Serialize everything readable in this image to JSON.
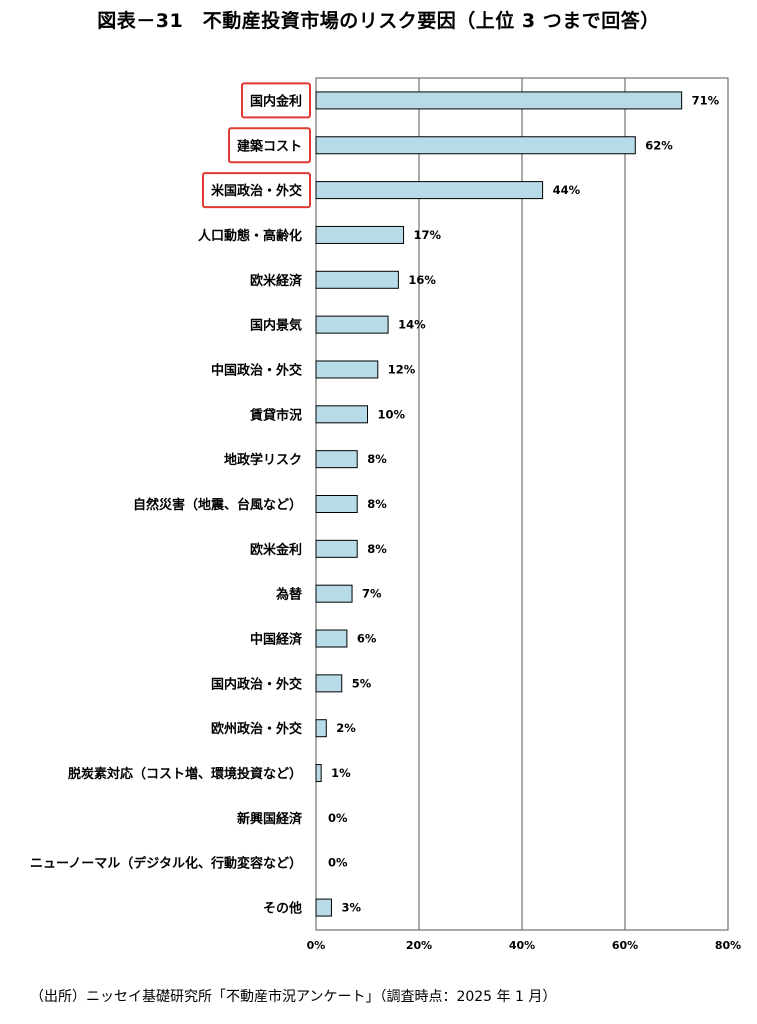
{
  "title": "図表－31　不動産投資市場のリスク要因（上位 3 つまで回答）",
  "source": "（出所）ニッセイ基礎研究所「不動産市況アンケート」（調査時点：2025 年 1 月）",
  "colors": {
    "bar_fill": "#b7dbe8",
    "bar_stroke": "#000000",
    "highlight": "#e03a32",
    "grid": "#555555"
  },
  "chart_data": {
    "type": "bar",
    "orientation": "horizontal",
    "title": "図表－31　不動産投資市場のリスク要因（上位 3 つまで回答）",
    "categories": [
      "国内金利",
      "建築コスト",
      "米国政治・外交",
      "人口動態・高齢化",
      "欧米経済",
      "国内景気",
      "中国政治・外交",
      "賃貸市況",
      "地政学リスク",
      "自然災害（地震、台風など）",
      "欧米金利",
      "為替",
      "中国経済",
      "国内政治・外交",
      "欧州政治・外交",
      "脱炭素対応（コスト増、環境投資など）",
      "新興国経済",
      "ニューノーマル（デジタル化、行動変容など）",
      "その他"
    ],
    "values": [
      71,
      62,
      44,
      17,
      16,
      14,
      12,
      10,
      8,
      8,
      8,
      7,
      6,
      5,
      2,
      1,
      0,
      0,
      3
    ],
    "value_labels": [
      "71%",
      "62%",
      "44%",
      "17%",
      "16%",
      "14%",
      "12%",
      "10%",
      "8%",
      "8%",
      "8%",
      "7%",
      "6%",
      "5%",
      "2%",
      "1%",
      "0%",
      "0%",
      "3%"
    ],
    "highlighted": [
      "国内金利",
      "建築コスト",
      "米国政治・外交"
    ],
    "xlim": [
      0,
      80
    ],
    "xticks": [
      0,
      20,
      40,
      60,
      80
    ],
    "xtick_labels": [
      "0%",
      "20%",
      "40%",
      "60%",
      "80%"
    ],
    "grid": true,
    "legend": "none"
  }
}
